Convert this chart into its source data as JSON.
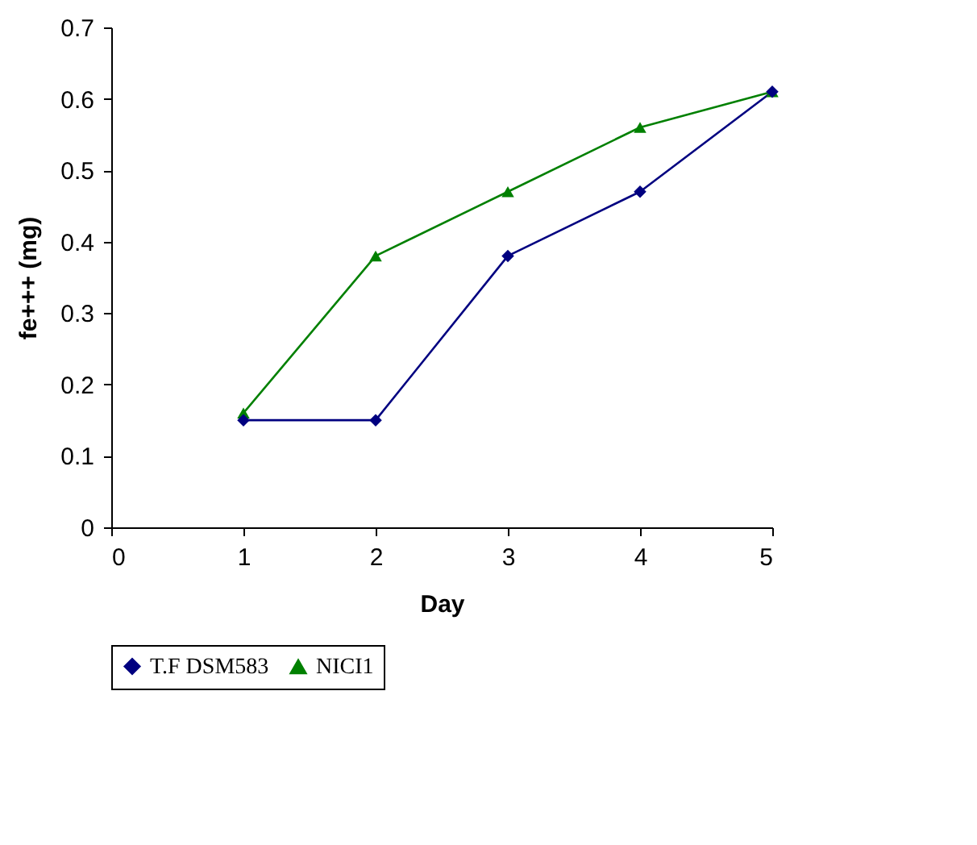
{
  "chart_data": {
    "type": "line",
    "xlabel": "Day",
    "ylabel": "fe+++ (mg)",
    "x": [
      1,
      2,
      3,
      4,
      5
    ],
    "series": [
      {
        "name": "T.F DSM583",
        "color": "#000080",
        "marker": "diamond",
        "values": [
          0.15,
          0.15,
          0.38,
          0.47,
          0.61
        ]
      },
      {
        "name": "NICI1",
        "color": "#008000",
        "marker": "triangle",
        "values": [
          0.16,
          0.38,
          0.47,
          0.56,
          0.61
        ]
      }
    ],
    "xlim": [
      0,
      5
    ],
    "xticks": [
      0,
      1,
      2,
      3,
      4,
      5
    ],
    "ylim": [
      0,
      0.7
    ],
    "yticks": [
      0,
      0.1,
      0.2,
      0.3,
      0.4,
      0.5,
      0.6,
      0.7
    ],
    "grid": false,
    "legend": "bottom",
    "line_style": "solid"
  }
}
